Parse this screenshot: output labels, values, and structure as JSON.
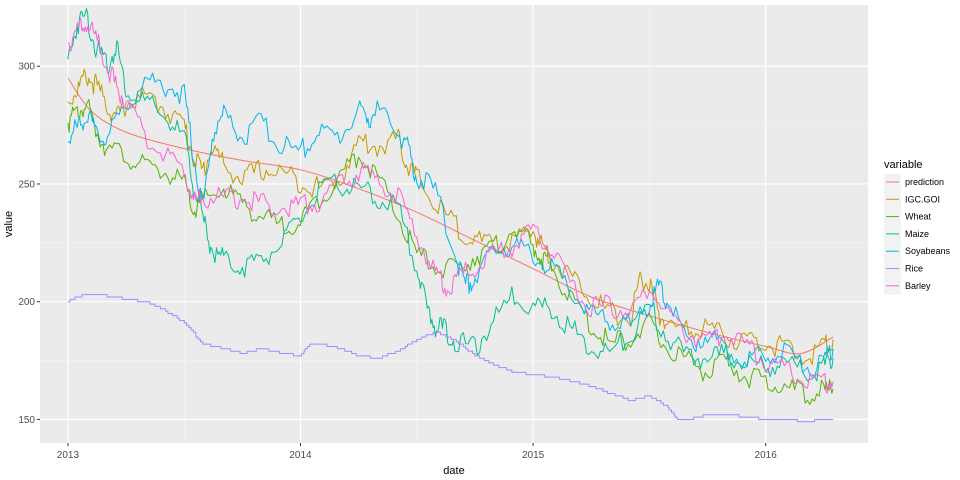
{
  "chart_data": {
    "type": "line",
    "xlabel": "date",
    "ylabel": "value",
    "x_tick_labels": [
      "2013",
      "2014",
      "2015",
      "2016"
    ],
    "y_tick_labels": [
      "150",
      "200",
      "250",
      "300"
    ],
    "x_ticks": [
      2013,
      2014,
      2015,
      2016
    ],
    "y_ticks": [
      150,
      200,
      250,
      300
    ],
    "xlim": [
      2012.88,
      2016.44
    ],
    "ylim": [
      140,
      326
    ],
    "grid": true,
    "legend": {
      "title": "variable",
      "placement": "right"
    },
    "series": [
      {
        "name": "prediction",
        "color": "#F8766D",
        "smooth": true,
        "x": [
          2013.0,
          2013.1,
          2013.25,
          2013.5,
          2013.75,
          2014.0,
          2014.25,
          2014.5,
          2014.75,
          2015.0,
          2015.25,
          2015.5,
          2015.75,
          2016.0,
          2016.15,
          2016.29
        ],
        "y": [
          295,
          281,
          272,
          265,
          260,
          256,
          248,
          238,
          226,
          214,
          202,
          194,
          187,
          181,
          178,
          185
        ]
      },
      {
        "name": "IGC.GOI",
        "color": "#C49A00",
        "x": [
          2013.0,
          2013.04,
          2013.08,
          2013.12,
          2013.17,
          2013.21,
          2013.25,
          2013.33,
          2013.42,
          2013.5,
          2013.54,
          2013.58,
          2013.62,
          2013.67,
          2013.75,
          2013.83,
          2013.92,
          2014.0,
          2014.08,
          2014.17,
          2014.25,
          2014.33,
          2014.42,
          2014.46,
          2014.5,
          2014.58,
          2014.67,
          2014.75,
          2014.83,
          2014.92,
          2015.0,
          2015.04,
          2015.08,
          2015.17,
          2015.25,
          2015.33,
          2015.42,
          2015.46,
          2015.5,
          2015.54,
          2015.58,
          2015.67,
          2015.75,
          2015.83,
          2015.92,
          2016.0,
          2016.08,
          2016.17,
          2016.25,
          2016.29
        ],
        "y": [
          285,
          290,
          296,
          292,
          283,
          278,
          284,
          287,
          282,
          275,
          262,
          255,
          266,
          258,
          252,
          256,
          255,
          251,
          248,
          252,
          268,
          266,
          269,
          258,
          253,
          241,
          232,
          226,
          223,
          226,
          230,
          224,
          218,
          210,
          203,
          195,
          193,
          210,
          207,
          195,
          190,
          187,
          190,
          185,
          183,
          183,
          180,
          176,
          181,
          184
        ]
      },
      {
        "name": "Wheat",
        "color": "#53B400",
        "x": [
          2013.0,
          2013.04,
          2013.08,
          2013.12,
          2013.17,
          2013.25,
          2013.33,
          2013.42,
          2013.5,
          2013.54,
          2013.58,
          2013.67,
          2013.75,
          2013.83,
          2013.92,
          2014.0,
          2014.08,
          2014.17,
          2014.25,
          2014.33,
          2014.42,
          2014.5,
          2014.58,
          2014.67,
          2014.75,
          2014.83,
          2014.92,
          2015.0,
          2015.04,
          2015.08,
          2015.17,
          2015.25,
          2015.33,
          2015.42,
          2015.5,
          2015.58,
          2015.67,
          2015.75,
          2015.83,
          2015.92,
          2016.0,
          2016.08,
          2016.17,
          2016.25,
          2016.29
        ],
        "y": [
          276,
          280,
          284,
          273,
          265,
          262,
          257,
          255,
          250,
          238,
          243,
          248,
          242,
          236,
          232,
          234,
          244,
          253,
          263,
          253,
          236,
          220,
          215,
          213,
          220,
          222,
          232,
          223,
          218,
          215,
          200,
          190,
          182,
          185,
          190,
          180,
          175,
          170,
          174,
          168,
          166,
          164,
          161,
          162,
          163
        ]
      },
      {
        "name": "Maize",
        "color": "#00C094",
        "x": [
          2013.0,
          2013.04,
          2013.08,
          2013.12,
          2013.17,
          2013.21,
          2013.25,
          2013.33,
          2013.42,
          2013.5,
          2013.54,
          2013.58,
          2013.62,
          2013.67,
          2013.75,
          2013.83,
          2013.92,
          2014.0,
          2014.08,
          2014.17,
          2014.25,
          2014.33,
          2014.42,
          2014.5,
          2014.54,
          2014.58,
          2014.62,
          2014.67,
          2014.75,
          2014.83,
          2014.92,
          2015.0,
          2015.08,
          2015.17,
          2015.25,
          2015.33,
          2015.42,
          2015.5,
          2015.58,
          2015.67,
          2015.75,
          2015.83,
          2015.92,
          2016.0,
          2016.08,
          2016.17,
          2016.25,
          2016.29
        ],
        "y": [
          303,
          318,
          322,
          308,
          300,
          309,
          290,
          285,
          278,
          270,
          250,
          235,
          222,
          218,
          215,
          218,
          225,
          235,
          247,
          250,
          248,
          244,
          240,
          215,
          198,
          190,
          188,
          183,
          180,
          192,
          203,
          198,
          197,
          188,
          180,
          178,
          186,
          198,
          185,
          176,
          176,
          178,
          174,
          172,
          174,
          170,
          172,
          176
        ]
      },
      {
        "name": "Soyabeans",
        "color": "#00B6EB",
        "x": [
          2013.0,
          2013.04,
          2013.08,
          2013.12,
          2013.17,
          2013.25,
          2013.33,
          2013.42,
          2013.5,
          2013.54,
          2013.58,
          2013.62,
          2013.67,
          2013.75,
          2013.83,
          2013.92,
          2014.0,
          2014.08,
          2014.17,
          2014.25,
          2014.29,
          2014.33,
          2014.42,
          2014.46,
          2014.5,
          2014.58,
          2014.67,
          2014.71,
          2014.75,
          2014.83,
          2014.92,
          2015.0,
          2015.08,
          2015.17,
          2015.25,
          2015.33,
          2015.42,
          2015.5,
          2015.54,
          2015.58,
          2015.67,
          2015.75,
          2015.83,
          2015.92,
          2016.0,
          2016.08,
          2016.17,
          2016.25,
          2016.29
        ],
        "y": [
          268,
          274,
          280,
          271,
          270,
          283,
          294,
          292,
          288,
          262,
          240,
          270,
          280,
          270,
          276,
          266,
          264,
          272,
          270,
          282,
          278,
          281,
          272,
          265,
          253,
          247,
          219,
          207,
          210,
          221,
          225,
          220,
          214,
          204,
          195,
          192,
          190,
          199,
          206,
          200,
          182,
          186,
          180,
          176,
          177,
          181,
          172,
          174,
          180
        ]
      },
      {
        "name": "Rice",
        "color": "#A58AFF",
        "x": [
          2013.0,
          2013.04,
          2013.08,
          2013.12,
          2013.25,
          2013.33,
          2013.42,
          2013.5,
          2013.58,
          2013.67,
          2013.75,
          2013.83,
          2013.92,
          2014.0,
          2014.04,
          2014.08,
          2014.17,
          2014.25,
          2014.33,
          2014.42,
          2014.5,
          2014.58,
          2014.67,
          2014.75,
          2014.83,
          2014.92,
          2015.0,
          2015.08,
          2015.17,
          2015.25,
          2015.33,
          2015.42,
          2015.5,
          2015.58,
          2015.62,
          2015.67,
          2015.75,
          2015.83,
          2015.92,
          2016.0,
          2016.08,
          2016.17,
          2016.25,
          2016.29
        ],
        "y": [
          200,
          202,
          203,
          203,
          201,
          200,
          196,
          191,
          182,
          180,
          178,
          180,
          178,
          177,
          182,
          182,
          180,
          177,
          176,
          179,
          184,
          187,
          183,
          177,
          173,
          170,
          169,
          168,
          166,
          164,
          161,
          158,
          160,
          155,
          150,
          150,
          152,
          152,
          151,
          150,
          150,
          149,
          150,
          150
        ]
      },
      {
        "name": "Barley",
        "color": "#FB61D7",
        "x": [
          2013.0,
          2013.04,
          2013.08,
          2013.12,
          2013.17,
          2013.21,
          2013.25,
          2013.33,
          2013.42,
          2013.5,
          2013.54,
          2013.58,
          2013.67,
          2013.75,
          2013.83,
          2013.92,
          2014.0,
          2014.08,
          2014.17,
          2014.25,
          2014.33,
          2014.42,
          2014.5,
          2014.58,
          2014.62,
          2014.67,
          2014.75,
          2014.83,
          2014.92,
          2015.0,
          2015.08,
          2015.17,
          2015.25,
          2015.33,
          2015.42,
          2015.5,
          2015.58,
          2015.67,
          2015.75,
          2015.83,
          2015.92,
          2016.0,
          2016.08,
          2016.17,
          2016.25,
          2016.29
        ],
        "y": [
          310,
          315,
          318,
          312,
          300,
          290,
          285,
          270,
          262,
          256,
          243,
          244,
          244,
          244,
          242,
          240,
          241,
          243,
          250,
          255,
          252,
          245,
          228,
          213,
          206,
          210,
          215,
          221,
          224,
          230,
          222,
          205,
          198,
          198,
          196,
          206,
          195,
          186,
          184,
          186,
          181,
          175,
          172,
          168,
          166,
          166
        ]
      }
    ]
  }
}
